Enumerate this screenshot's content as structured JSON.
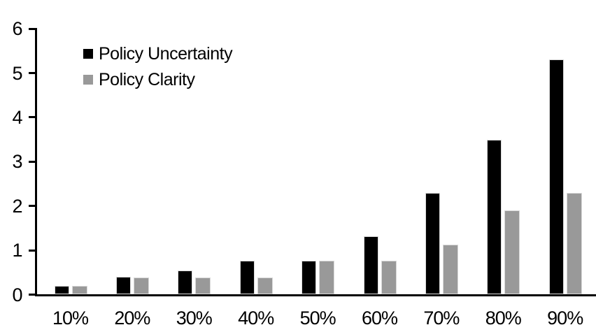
{
  "chart_data": {
    "type": "bar",
    "title": "",
    "xlabel": "",
    "ylabel": "",
    "categories": [
      "10%",
      "20%",
      "30%",
      "40%",
      "50%",
      "60%",
      "70%",
      "80%",
      "90%"
    ],
    "series": [
      {
        "name": "Policy Uncertainty",
        "color": "#000000",
        "values": [
          0.2,
          0.4,
          0.55,
          0.76,
          0.77,
          1.32,
          2.3,
          3.5,
          5.3
        ]
      },
      {
        "name": "Policy Clarity",
        "color": "#999999",
        "values": [
          0.2,
          0.38,
          0.38,
          0.38,
          0.76,
          0.76,
          1.13,
          1.9,
          2.3
        ]
      }
    ],
    "ylim": [
      0,
      6
    ],
    "yticks": [
      "0",
      "1",
      "2",
      "3",
      "4",
      "5",
      "6"
    ],
    "grid": false,
    "legend_position": "inside-top-left",
    "axis_color": "#000000",
    "bar_border_color": "#d9d9d9",
    "background": "#ffffff"
  }
}
